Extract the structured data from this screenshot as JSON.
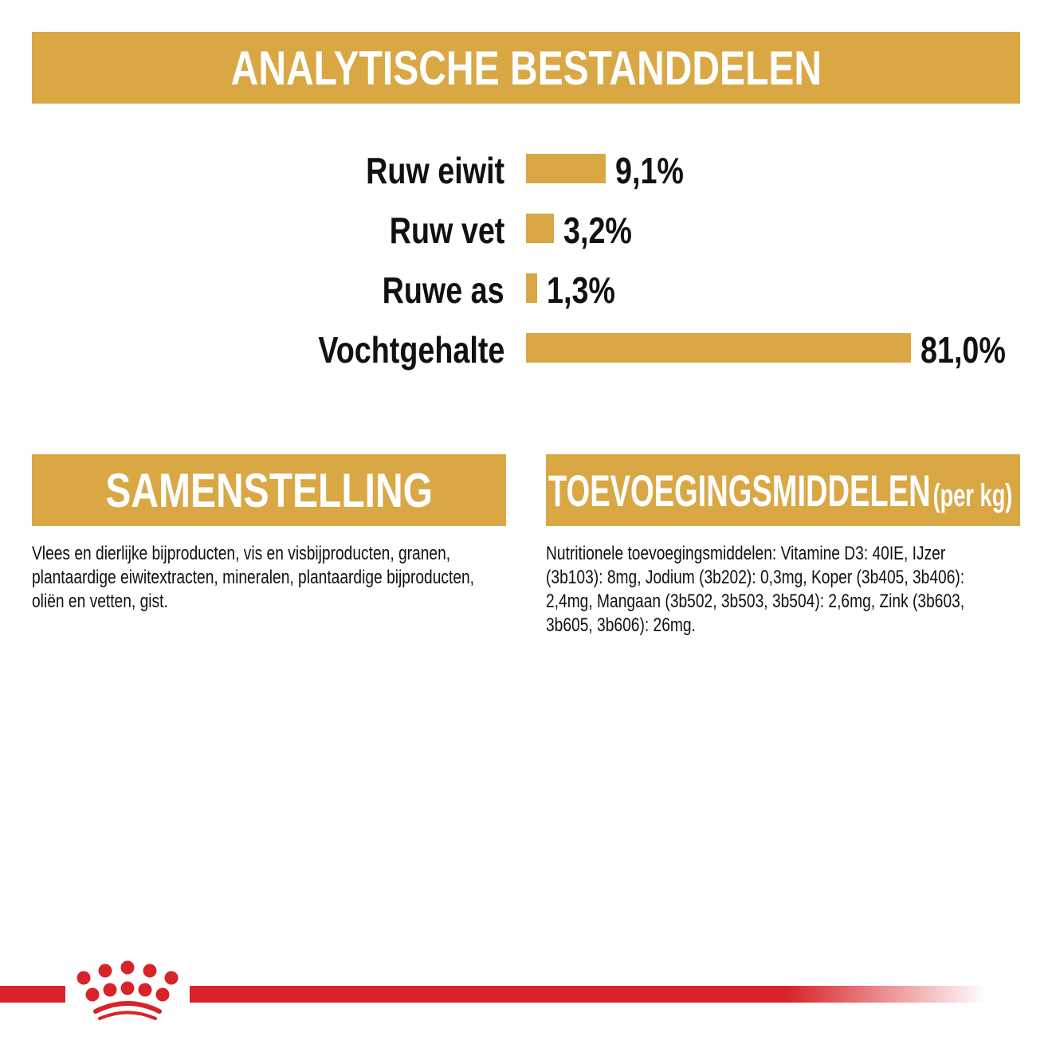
{
  "header": {
    "title": "ANALYTISCHE BESTANDDELEN"
  },
  "chart_data": {
    "type": "bar",
    "orientation": "horizontal",
    "categories": [
      "Ruw eiwit",
      "Ruw vet",
      "Ruwe as",
      "Vochtgehalte"
    ],
    "values": [
      9.1,
      3.2,
      1.3,
      81.0
    ],
    "value_labels": [
      "9,1%",
      "3,2%",
      "1,3%",
      "81,0%"
    ],
    "unit": "%",
    "color": "#d9a845"
  },
  "composition": {
    "title": "SAMENSTELLING",
    "text": "Vlees en dierlijke bijproducten, vis en visbijproducten, granen, plantaardige eiwitextracten, mineralen, plantaardige bijproducten, oliën en vetten, gist."
  },
  "additives": {
    "title": "TOEVOEGINGSMIDDELEN",
    "title_suffix": "(per kg)",
    "text": "Nutritionele toevoegingsmiddelen: Vitamine D3: 40IE, IJzer (3b103): 8mg, Jodium (3b202): 0,3mg, Koper (3b405, 3b406): 2,4mg, Mangaan (3b502, 3b503, 3b504): 2,6mg, Zink (3b603, 3b605, 3b606): 26mg."
  },
  "footer": {
    "logo": "royal-canin-crown",
    "brand_color": "#d8232a"
  }
}
